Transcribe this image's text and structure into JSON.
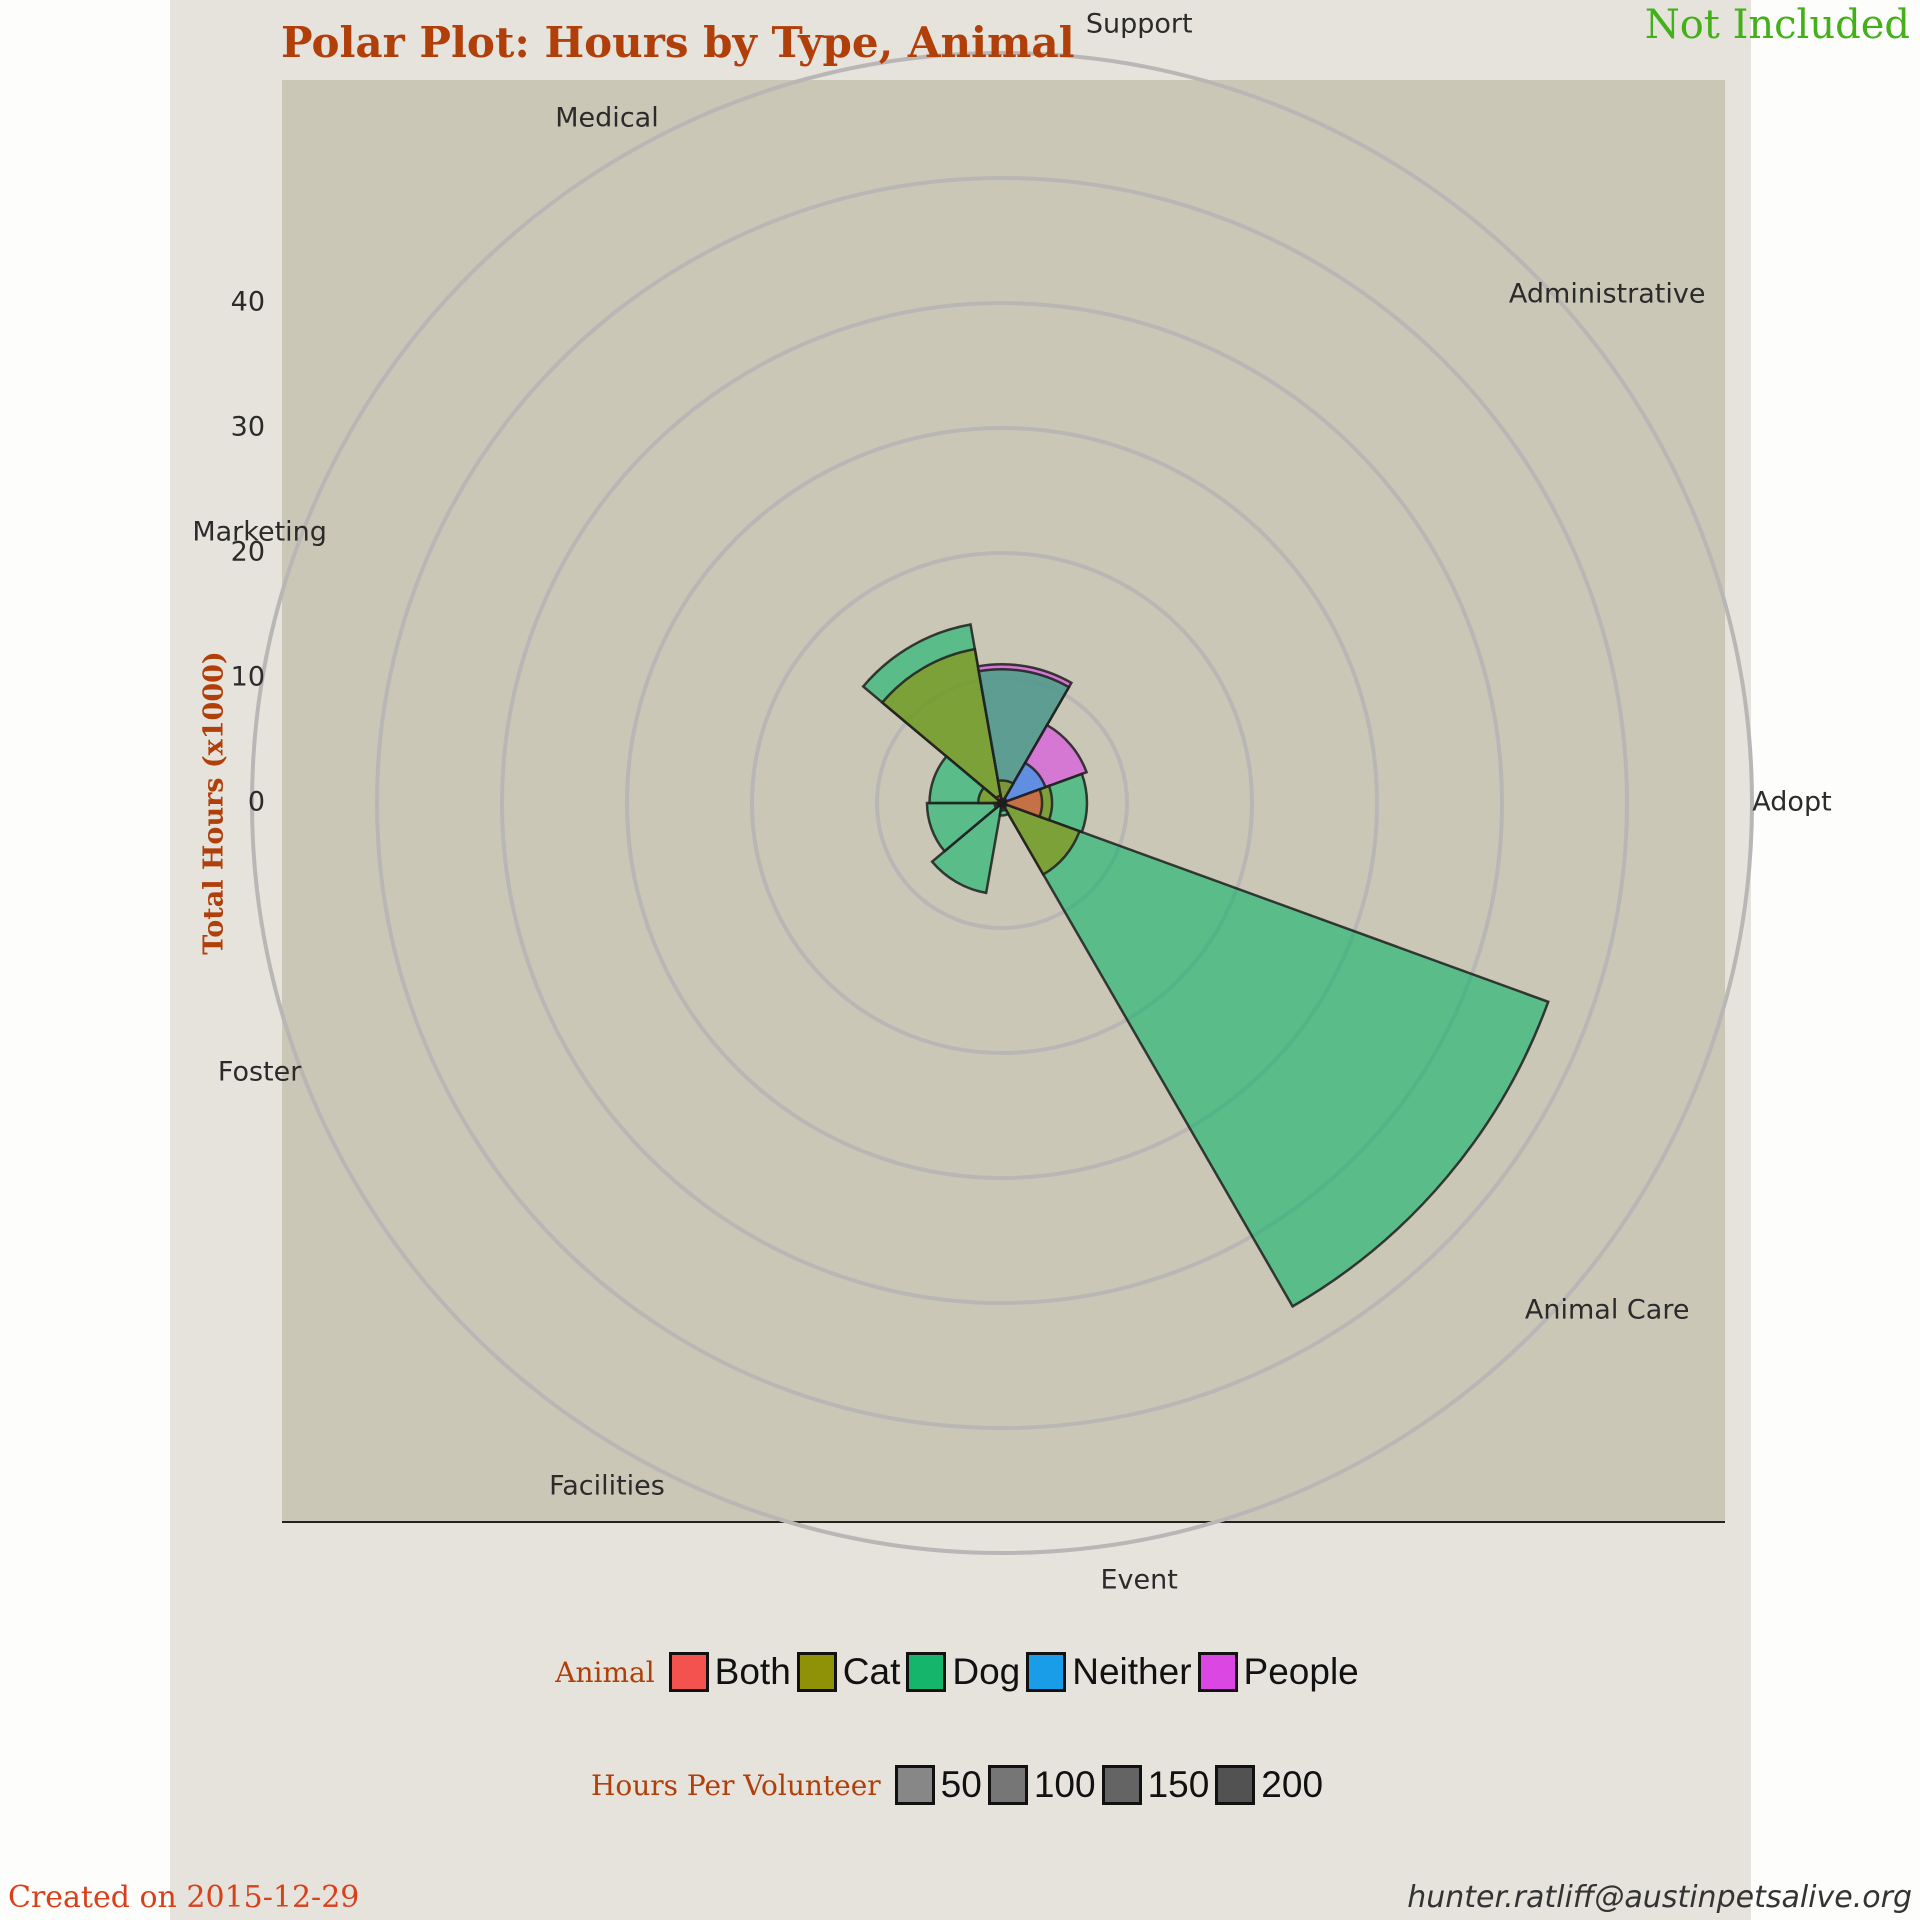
{
  "watermark": "Not Included",
  "footer": {
    "created": "Created on 2015-12-29",
    "email": "hunter.ratliff@austinpetsalive.org"
  },
  "colors": {
    "Both": "#f3524f",
    "Cat": "#8f9206",
    "Dog": "#15b56b",
    "Neither": "#1a9de9",
    "People": "#da47e3",
    "figure_bg": "#e6e3dc",
    "panel_bg": "#cbc7b7",
    "title": "#b03f0a"
  },
  "legend": {
    "animal_title": "Animal",
    "animal_items": [
      "Both",
      "Cat",
      "Dog",
      "Neither",
      "People"
    ],
    "size_title": "Hours Per Volunteer",
    "size_items": [
      {
        "label": "50",
        "color": "#878787"
      },
      {
        "label": "100",
        "color": "#767676"
      },
      {
        "label": "150",
        "color": "#646464"
      },
      {
        "label": "200",
        "color": "#525252"
      }
    ]
  },
  "chart_data": {
    "type": "polar-bar",
    "title": "Polar Plot: Hours by Type, Animal",
    "ylabel": "Total Hours (x1000)",
    "r_ticks": [
      0,
      10,
      20,
      30,
      40
    ],
    "r_range": [
      0,
      50
    ],
    "grid": true,
    "legend_position": "bottom",
    "categories": [
      "Administrative",
      "Adopt",
      "Animal Care",
      "Event",
      "Facilities",
      "Foster",
      "Marketing",
      "Medical",
      "Support"
    ],
    "series": [
      {
        "name": "Both",
        "values": [
          0.3,
          3.2,
          0.4,
          0.2,
          0.3,
          0.4,
          0.3,
          0.6,
          0.3
        ]
      },
      {
        "name": "Cat",
        "values": [
          0.3,
          4.0,
          6.6,
          0.4,
          0.3,
          0.6,
          1.9,
          12.5,
          1.8
        ]
      },
      {
        "name": "Dog",
        "values": [
          0.4,
          6.8,
          46.5,
          1.0,
          7.3,
          6.0,
          5.8,
          14.5,
          10.7
        ]
      },
      {
        "name": "Neither",
        "values": [
          3.7,
          0.3,
          0.2,
          0.6,
          0.2,
          0.2,
          0.2,
          0.3,
          0.3
        ]
      },
      {
        "name": "People",
        "values": [
          7.2,
          0.2,
          0.1,
          0.2,
          0.1,
          0.1,
          0.2,
          0.3,
          11.1
        ]
      }
    ]
  }
}
